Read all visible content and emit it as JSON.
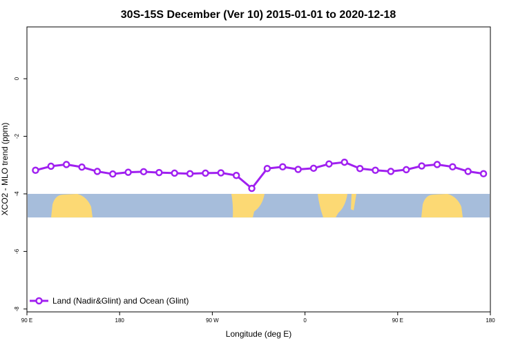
{
  "chart_data": {
    "type": "line",
    "title": "30S-15S December (Ver 10)   2015-01-01 to 2020-12-18",
    "xlabel": "Longitude (deg E)",
    "ylabel": "XCO2 - MLO trend (ppm)",
    "xlim": [
      -90,
      180
    ],
    "ylim": [
      -8.1,
      1.8
    ],
    "x_ticks": [
      {
        "value": -90,
        "label": "90 E"
      },
      {
        "value": -36,
        "label": "180"
      },
      {
        "value": 18,
        "label": "90 W"
      },
      {
        "value": 72,
        "label": "0"
      },
      {
        "value": 126,
        "label": "90 E"
      },
      {
        "value": 180,
        "label": "180"
      }
    ],
    "y_ticks": [
      {
        "value": 0,
        "label": "0"
      },
      {
        "value": -2,
        "label": "-2"
      },
      {
        "value": -4,
        "label": "-4"
      },
      {
        "value": -6,
        "label": "-6"
      },
      {
        "value": -8,
        "label": "-8"
      }
    ],
    "grid": false,
    "legend_position": "bottom-left",
    "background_map": {
      "kind": "land-ocean strip (30S-15S)",
      "y_range": [
        -4.82,
        -4.0
      ],
      "ocean_color": "#a6bddb",
      "land_color": "#fcd974"
    },
    "series": [
      {
        "name": "Land (Nadir&Glint) and Ocean (Glint)",
        "color": "#a020f0",
        "x": [
          -85,
          -76,
          -67,
          -58,
          -49,
          -40,
          -31,
          -22,
          -13,
          -4,
          5,
          14,
          23,
          32,
          41,
          50,
          59,
          68,
          77,
          86,
          95,
          104,
          113,
          122,
          131,
          140,
          149,
          158,
          167,
          176
        ],
        "y": [
          -3.18,
          -3.04,
          -2.98,
          -3.07,
          -3.22,
          -3.31,
          -3.25,
          -3.23,
          -3.26,
          -3.28,
          -3.3,
          -3.28,
          -3.27,
          -3.36,
          -3.81,
          -3.12,
          -3.06,
          -3.15,
          -3.11,
          -2.96,
          -2.9,
          -3.12,
          -3.18,
          -3.22,
          -3.16,
          -3.03,
          -2.98,
          -3.06,
          -3.22,
          -3.3
        ]
      }
    ]
  }
}
